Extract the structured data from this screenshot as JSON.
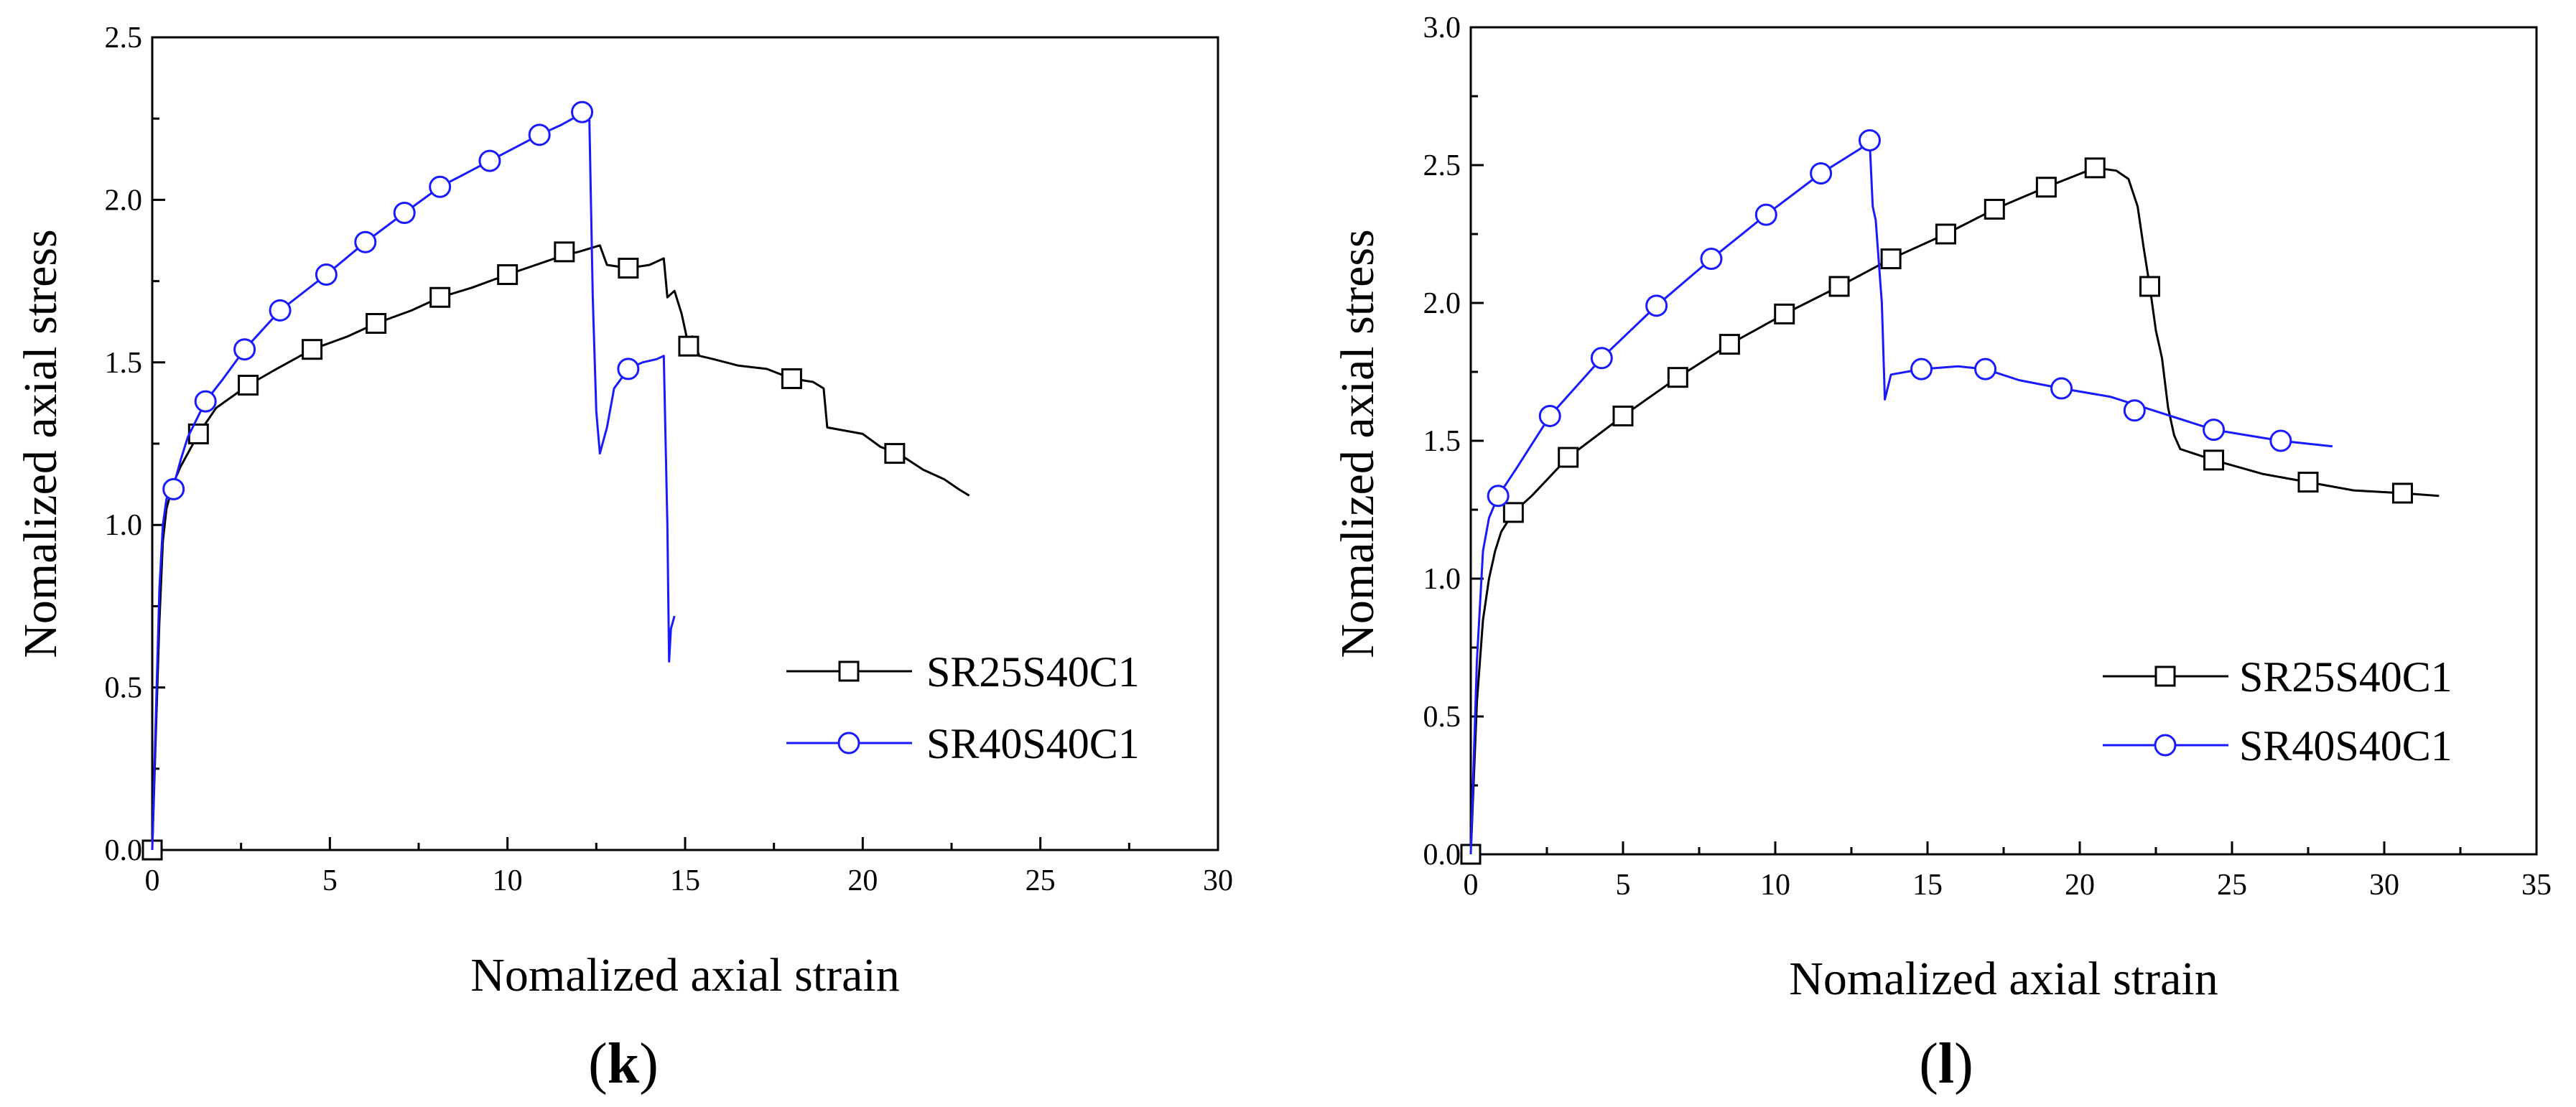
{
  "chart_data": [
    {
      "type": "line",
      "panel_label_open": "(",
      "panel_label_letter": "k",
      "panel_label_close": ")",
      "xlabel": "Nomalized axial strain",
      "ylabel": "Nomalized axial stress",
      "xlim": [
        0,
        30
      ],
      "ylim": [
        0,
        2.5
      ],
      "x_ticks": [
        0,
        5,
        10,
        15,
        20,
        25,
        30
      ],
      "x_tick_labels": [
        "0",
        "5",
        "10",
        "15",
        "20",
        "25",
        "30"
      ],
      "y_ticks": [
        0,
        0.5,
        1.0,
        1.5,
        2.0,
        2.5
      ],
      "y_tick_labels": [
        "0.0",
        "0.5",
        "1.0",
        "1.5",
        "2.0",
        "2.5"
      ],
      "legend_position": "bottom-right",
      "series": [
        {
          "name": "SR25S40C1",
          "color": "#000000",
          "marker": "square",
          "x": [
            0,
            0.1,
            0.2,
            0.3,
            0.4,
            0.6,
            0.8,
            1.0,
            1.3,
            1.8,
            2.7,
            3.5,
            4.5,
            5.5,
            6.3,
            7.3,
            8.1,
            9.0,
            10.0,
            10.8,
            11.6,
            12.0,
            12.3,
            12.6,
            12.8,
            13.4,
            14.0,
            14.4,
            14.5,
            14.7,
            14.9,
            15.0,
            15.1,
            15.2,
            15.4,
            15.8,
            16.5,
            17.3,
            18.0,
            18.6,
            18.9,
            19.0,
            19.5,
            20.0,
            20.5,
            21.0,
            21.7,
            22.3,
            22.7,
            23.0
          ],
          "y": [
            0,
            0.35,
            0.7,
            0.95,
            1.05,
            1.13,
            1.18,
            1.22,
            1.28,
            1.36,
            1.43,
            1.48,
            1.54,
            1.58,
            1.62,
            1.66,
            1.7,
            1.73,
            1.77,
            1.8,
            1.83,
            1.84,
            1.85,
            1.86,
            1.8,
            1.79,
            1.8,
            1.82,
            1.7,
            1.72,
            1.65,
            1.6,
            1.55,
            1.58,
            1.52,
            1.51,
            1.49,
            1.48,
            1.45,
            1.44,
            1.42,
            1.3,
            1.29,
            1.28,
            1.24,
            1.22,
            1.17,
            1.14,
            1.11,
            1.09
          ],
          "marker_x": [
            0.0,
            1.3,
            2.7,
            4.5,
            6.3,
            8.1,
            10.0,
            11.6,
            13.4,
            15.1,
            18.0,
            20.9
          ],
          "marker_y": [
            0.0,
            1.28,
            1.43,
            1.54,
            1.62,
            1.7,
            1.77,
            1.84,
            1.79,
            1.55,
            1.45,
            1.22
          ]
        },
        {
          "name": "SR40S40C1",
          "color": "#1a1aff",
          "marker": "circle",
          "x": [
            0,
            0.1,
            0.2,
            0.3,
            0.4,
            0.6,
            0.8,
            1.0,
            1.5,
            2.0,
            2.6,
            3.6,
            4.9,
            6.0,
            7.1,
            8.1,
            9.5,
            10.9,
            11.5,
            12.0,
            12.3,
            12.4,
            12.5,
            12.6,
            12.8,
            13.0,
            13.4,
            13.8,
            14.2,
            14.4,
            14.5,
            14.55,
            14.6,
            14.7
          ],
          "y": [
            0,
            0.4,
            0.8,
            1.0,
            1.08,
            1.12,
            1.2,
            1.27,
            1.38,
            1.45,
            1.54,
            1.66,
            1.77,
            1.87,
            1.96,
            2.04,
            2.12,
            2.2,
            2.23,
            2.26,
            2.28,
            1.7,
            1.35,
            1.22,
            1.3,
            1.42,
            1.48,
            1.5,
            1.51,
            1.52,
            1.0,
            0.58,
            0.68,
            0.72
          ],
          "marker_x": [
            0.6,
            1.5,
            2.6,
            3.6,
            4.9,
            6.0,
            7.1,
            8.1,
            9.5,
            10.9,
            12.1,
            13.4
          ],
          "marker_y": [
            1.11,
            1.38,
            1.54,
            1.66,
            1.77,
            1.87,
            1.96,
            2.04,
            2.12,
            2.2,
            2.27,
            1.48
          ]
        }
      ]
    },
    {
      "type": "line",
      "panel_label_open": "(",
      "panel_label_letter": "l",
      "panel_label_close": ")",
      "xlabel": "Nomalized axial strain",
      "ylabel": "Nomalized axial stress",
      "xlim": [
        0,
        35
      ],
      "ylim": [
        0,
        3.0
      ],
      "x_ticks": [
        0,
        5,
        10,
        15,
        20,
        25,
        30,
        35
      ],
      "x_tick_labels": [
        "0",
        "5",
        "10",
        "15",
        "20",
        "25",
        "30",
        "35"
      ],
      "y_ticks": [
        0,
        0.5,
        1.0,
        1.5,
        2.0,
        2.5,
        3.0
      ],
      "y_tick_labels": [
        "0.0",
        "0.5",
        "1.0",
        "1.5",
        "2.0",
        "2.5",
        "3.0"
      ],
      "legend_position": "bottom-right",
      "series": [
        {
          "name": "SR25S40C1",
          "color": "#000000",
          "marker": "square",
          "x": [
            0,
            0.2,
            0.4,
            0.6,
            0.8,
            1.0,
            1.4,
            2.0,
            3.2,
            5.0,
            6.8,
            8.5,
            10.3,
            12.1,
            13.8,
            15.6,
            17.2,
            18.9,
            20.5,
            21.2,
            21.6,
            21.9,
            22.1,
            22.3,
            22.5,
            22.7,
            22.9,
            23.1,
            23.3,
            24.4,
            26.0,
            27.5,
            29.0,
            30.6,
            31.8
          ],
          "y": [
            0,
            0.55,
            0.85,
            1.0,
            1.1,
            1.17,
            1.24,
            1.3,
            1.44,
            1.59,
            1.73,
            1.85,
            1.96,
            2.06,
            2.16,
            2.25,
            2.34,
            2.42,
            2.49,
            2.48,
            2.45,
            2.35,
            2.2,
            2.06,
            1.9,
            1.8,
            1.62,
            1.52,
            1.47,
            1.43,
            1.38,
            1.35,
            1.32,
            1.31,
            1.3
          ],
          "marker_x": [
            0.0,
            1.4,
            3.2,
            5.0,
            6.8,
            8.5,
            10.3,
            12.1,
            13.8,
            15.6,
            17.2,
            18.9,
            20.5,
            22.3,
            24.4,
            27.5,
            30.6
          ],
          "marker_y": [
            0.0,
            1.24,
            1.44,
            1.59,
            1.73,
            1.85,
            1.96,
            2.06,
            2.16,
            2.25,
            2.34,
            2.42,
            2.49,
            2.06,
            1.43,
            1.35,
            1.31
          ]
        },
        {
          "name": "SR40S40C1",
          "color": "#1a1aff",
          "marker": "circle",
          "x": [
            0,
            0.2,
            0.4,
            0.6,
            0.9,
            1.5,
            2.6,
            4.3,
            6.1,
            7.9,
            9.7,
            11.5,
            12.8,
            13.1,
            13.2,
            13.3,
            13.5,
            13.6,
            13.8,
            14.8,
            16.0,
            16.9,
            18.0,
            19.4,
            21.0,
            22.7,
            24.4,
            26.6,
            28.3
          ],
          "y": [
            0,
            0.7,
            1.1,
            1.22,
            1.3,
            1.4,
            1.59,
            1.8,
            1.99,
            2.16,
            2.32,
            2.47,
            2.56,
            2.59,
            2.35,
            2.3,
            2.0,
            1.65,
            1.74,
            1.76,
            1.77,
            1.76,
            1.72,
            1.69,
            1.66,
            1.6,
            1.54,
            1.5,
            1.48
          ],
          "marker_x": [
            0.9,
            2.6,
            4.3,
            6.1,
            7.9,
            9.7,
            11.5,
            13.1,
            14.8,
            16.9,
            19.4,
            21.8,
            24.4,
            26.6
          ],
          "marker_y": [
            1.3,
            1.59,
            1.8,
            1.99,
            2.16,
            2.32,
            2.47,
            2.59,
            1.76,
            1.76,
            1.69,
            1.61,
            1.54,
            1.5
          ]
        }
      ]
    }
  ]
}
